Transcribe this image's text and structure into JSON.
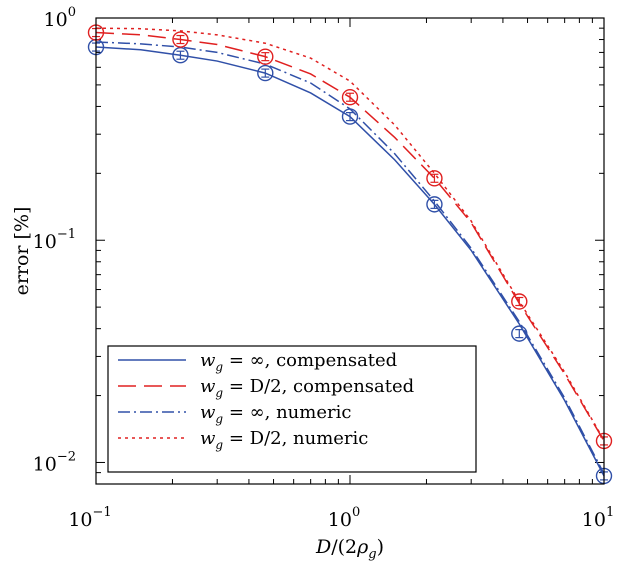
{
  "chart_data": {
    "type": "line",
    "xlabel": "D/(2ρ_g)",
    "ylabel": "error [%]",
    "xscale": "log",
    "yscale": "log",
    "xlim": [
      0.1,
      10
    ],
    "ylim": [
      0.008,
      1
    ],
    "x_ticks": [
      {
        "base": "10",
        "exp": "−1",
        "value": 0.1
      },
      {
        "base": "10",
        "exp": "0",
        "value": 1
      },
      {
        "base": "10",
        "exp": "1",
        "value": 10
      }
    ],
    "y_ticks": [
      {
        "base": "10",
        "exp": "−2",
        "value": 0.01
      },
      {
        "base": "10",
        "exp": "−1",
        "value": 0.1
      },
      {
        "base": "10",
        "exp": "0",
        "value": 1
      }
    ],
    "legend_position": "bottom-left",
    "colors": {
      "blue": "#3050a8",
      "red": "#e02020"
    },
    "series": [
      {
        "name": "w_g = ∞, compensated",
        "legend_math": "w",
        "legend_sub": "g",
        "legend_rest": " = ∞, compensated",
        "color": "#3050a8",
        "dash": "solid",
        "x": [
          0.1,
          0.15,
          0.215,
          0.3,
          0.464,
          0.7,
          1.0,
          1.5,
          2.15,
          3.0,
          4.64,
          7.0,
          10.0
        ],
        "y": [
          0.74,
          0.72,
          0.68,
          0.64,
          0.565,
          0.46,
          0.36,
          0.23,
          0.145,
          0.09,
          0.042,
          0.019,
          0.0087
        ]
      },
      {
        "name": "w_g = D/2, compensated",
        "legend_math": "w",
        "legend_sub": "g",
        "legend_rest": " = D/2, compensated",
        "color": "#e02020",
        "dash": "long-dash",
        "x": [
          0.1,
          0.15,
          0.215,
          0.3,
          0.464,
          0.7,
          1.0,
          1.5,
          2.15,
          3.0,
          4.64,
          7.0,
          10.0
        ],
        "y": [
          0.86,
          0.84,
          0.8,
          0.76,
          0.67,
          0.56,
          0.44,
          0.29,
          0.19,
          0.12,
          0.052,
          0.025,
          0.0125
        ]
      },
      {
        "name": "w_g = ∞, numeric",
        "legend_math": "w",
        "legend_sub": "g",
        "legend_rest": " = ∞, numeric",
        "color": "#3050a8",
        "dash": "dash-dot",
        "x": [
          0.1,
          0.15,
          0.215,
          0.3,
          0.464,
          0.7,
          1.0,
          1.5,
          2.15,
          3.0,
          4.64,
          7.0,
          10.0
        ],
        "y": [
          0.78,
          0.765,
          0.74,
          0.7,
          0.62,
          0.51,
          0.39,
          0.245,
          0.15,
          0.092,
          0.043,
          0.0195,
          0.0089
        ]
      },
      {
        "name": "w_g = D/2, numeric",
        "legend_math": "w",
        "legend_sub": "g",
        "legend_rest": " = D/2, numeric",
        "color": "#e02020",
        "dash": "dotted",
        "x": [
          0.1,
          0.15,
          0.215,
          0.3,
          0.464,
          0.7,
          1.0,
          1.5,
          2.15,
          3.0,
          4.64,
          7.0,
          10.0
        ],
        "y": [
          0.9,
          0.895,
          0.875,
          0.84,
          0.77,
          0.66,
          0.52,
          0.33,
          0.2,
          0.122,
          0.053,
          0.0255,
          0.0126
        ]
      }
    ],
    "markers": [
      {
        "color": "#3050a8",
        "x": [
          0.1,
          0.215,
          0.464,
          1.0,
          2.15,
          4.64,
          10.0
        ],
        "y": [
          0.74,
          0.68,
          0.565,
          0.36,
          0.145,
          0.038,
          0.0087
        ]
      },
      {
        "color": "#e02020",
        "x": [
          0.1,
          0.215,
          0.464,
          1.0,
          2.15,
          4.64,
          10.0
        ],
        "y": [
          0.86,
          0.8,
          0.67,
          0.44,
          0.19,
          0.053,
          0.0125
        ]
      }
    ]
  }
}
